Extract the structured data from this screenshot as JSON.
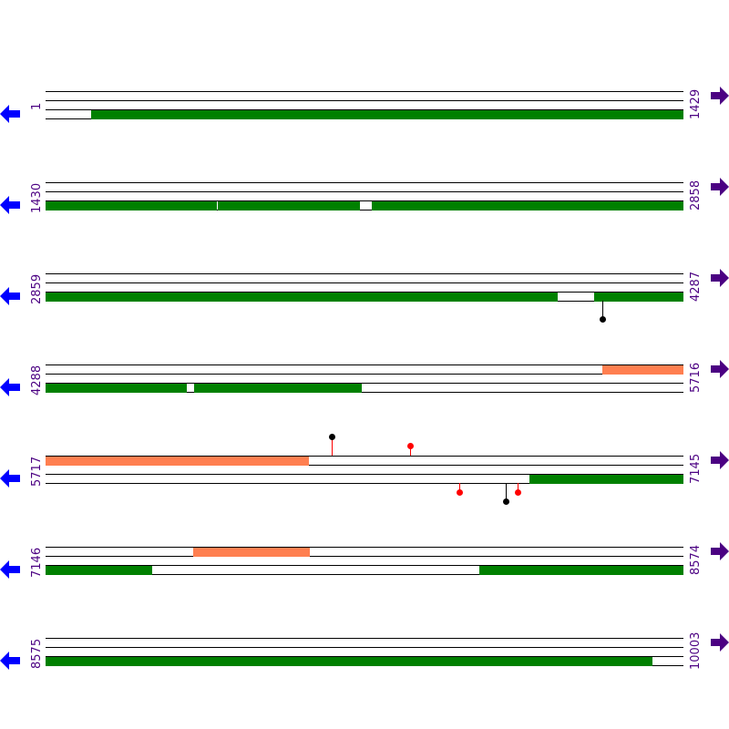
{
  "colors": {
    "forward": "#ff7f50",
    "reverse": "#008000",
    "line": "#000000",
    "label": "#4b0082",
    "left_arrow": "#0000ff",
    "right_arrow": "#4b0082"
  },
  "icons": {
    "left": "arrow-left-icon",
    "right": "arrow-right-icon"
  },
  "rows": [
    {
      "start": "1",
      "end": "1429",
      "top": [],
      "bottom": [
        [
          103,
          1429
        ]
      ],
      "markers": []
    },
    {
      "start": "1430",
      "end": "2858",
      "top": [],
      "bottom": [
        [
          1430,
          1813
        ],
        [
          1815,
          2134
        ],
        [
          2161,
          2858
        ]
      ],
      "markers": []
    },
    {
      "start": "2859",
      "end": "4287",
      "top": [],
      "bottom": [
        [
          2859,
          3143
        ],
        [
          3145,
          4006
        ],
        [
          4088,
          4287
        ]
      ],
      "markers": [
        {
          "pos": 4106,
          "side": "below",
          "color": "#000000"
        }
      ]
    },
    {
      "start": "4288",
      "end": "5716",
      "top": [
        [
          5535,
          5716
        ]
      ],
      "bottom": [
        [
          4288,
          4604
        ],
        [
          4621,
          4996
        ]
      ],
      "markers": []
    },
    {
      "start": "5717",
      "end": "7145",
      "top": [
        [
          5717,
          6305
        ]
      ],
      "bottom": [
        [
          6801,
          7145
        ]
      ],
      "markers": [
        {
          "pos": 6358,
          "side": "above",
          "color": "#000000"
        },
        {
          "pos": 6533,
          "side": "above",
          "color": "#ff0000"
        },
        {
          "pos": 6644,
          "side": "below",
          "color": "#ff0000"
        },
        {
          "pos": 6748,
          "side": "below",
          "color": "#000000"
        },
        {
          "pos": 6774,
          "side": "below",
          "color": "#ff0000"
        }
      ]
    },
    {
      "start": "7146",
      "end": "8574",
      "top": [
        [
          7477,
          7738
        ]
      ],
      "bottom": [
        [
          7146,
          7383
        ],
        [
          8118,
          8574
        ]
      ],
      "markers": []
    },
    {
      "start": "8575",
      "end": "10003",
      "top": [],
      "bottom": [
        [
          8575,
          9934
        ]
      ],
      "markers": []
    }
  ]
}
